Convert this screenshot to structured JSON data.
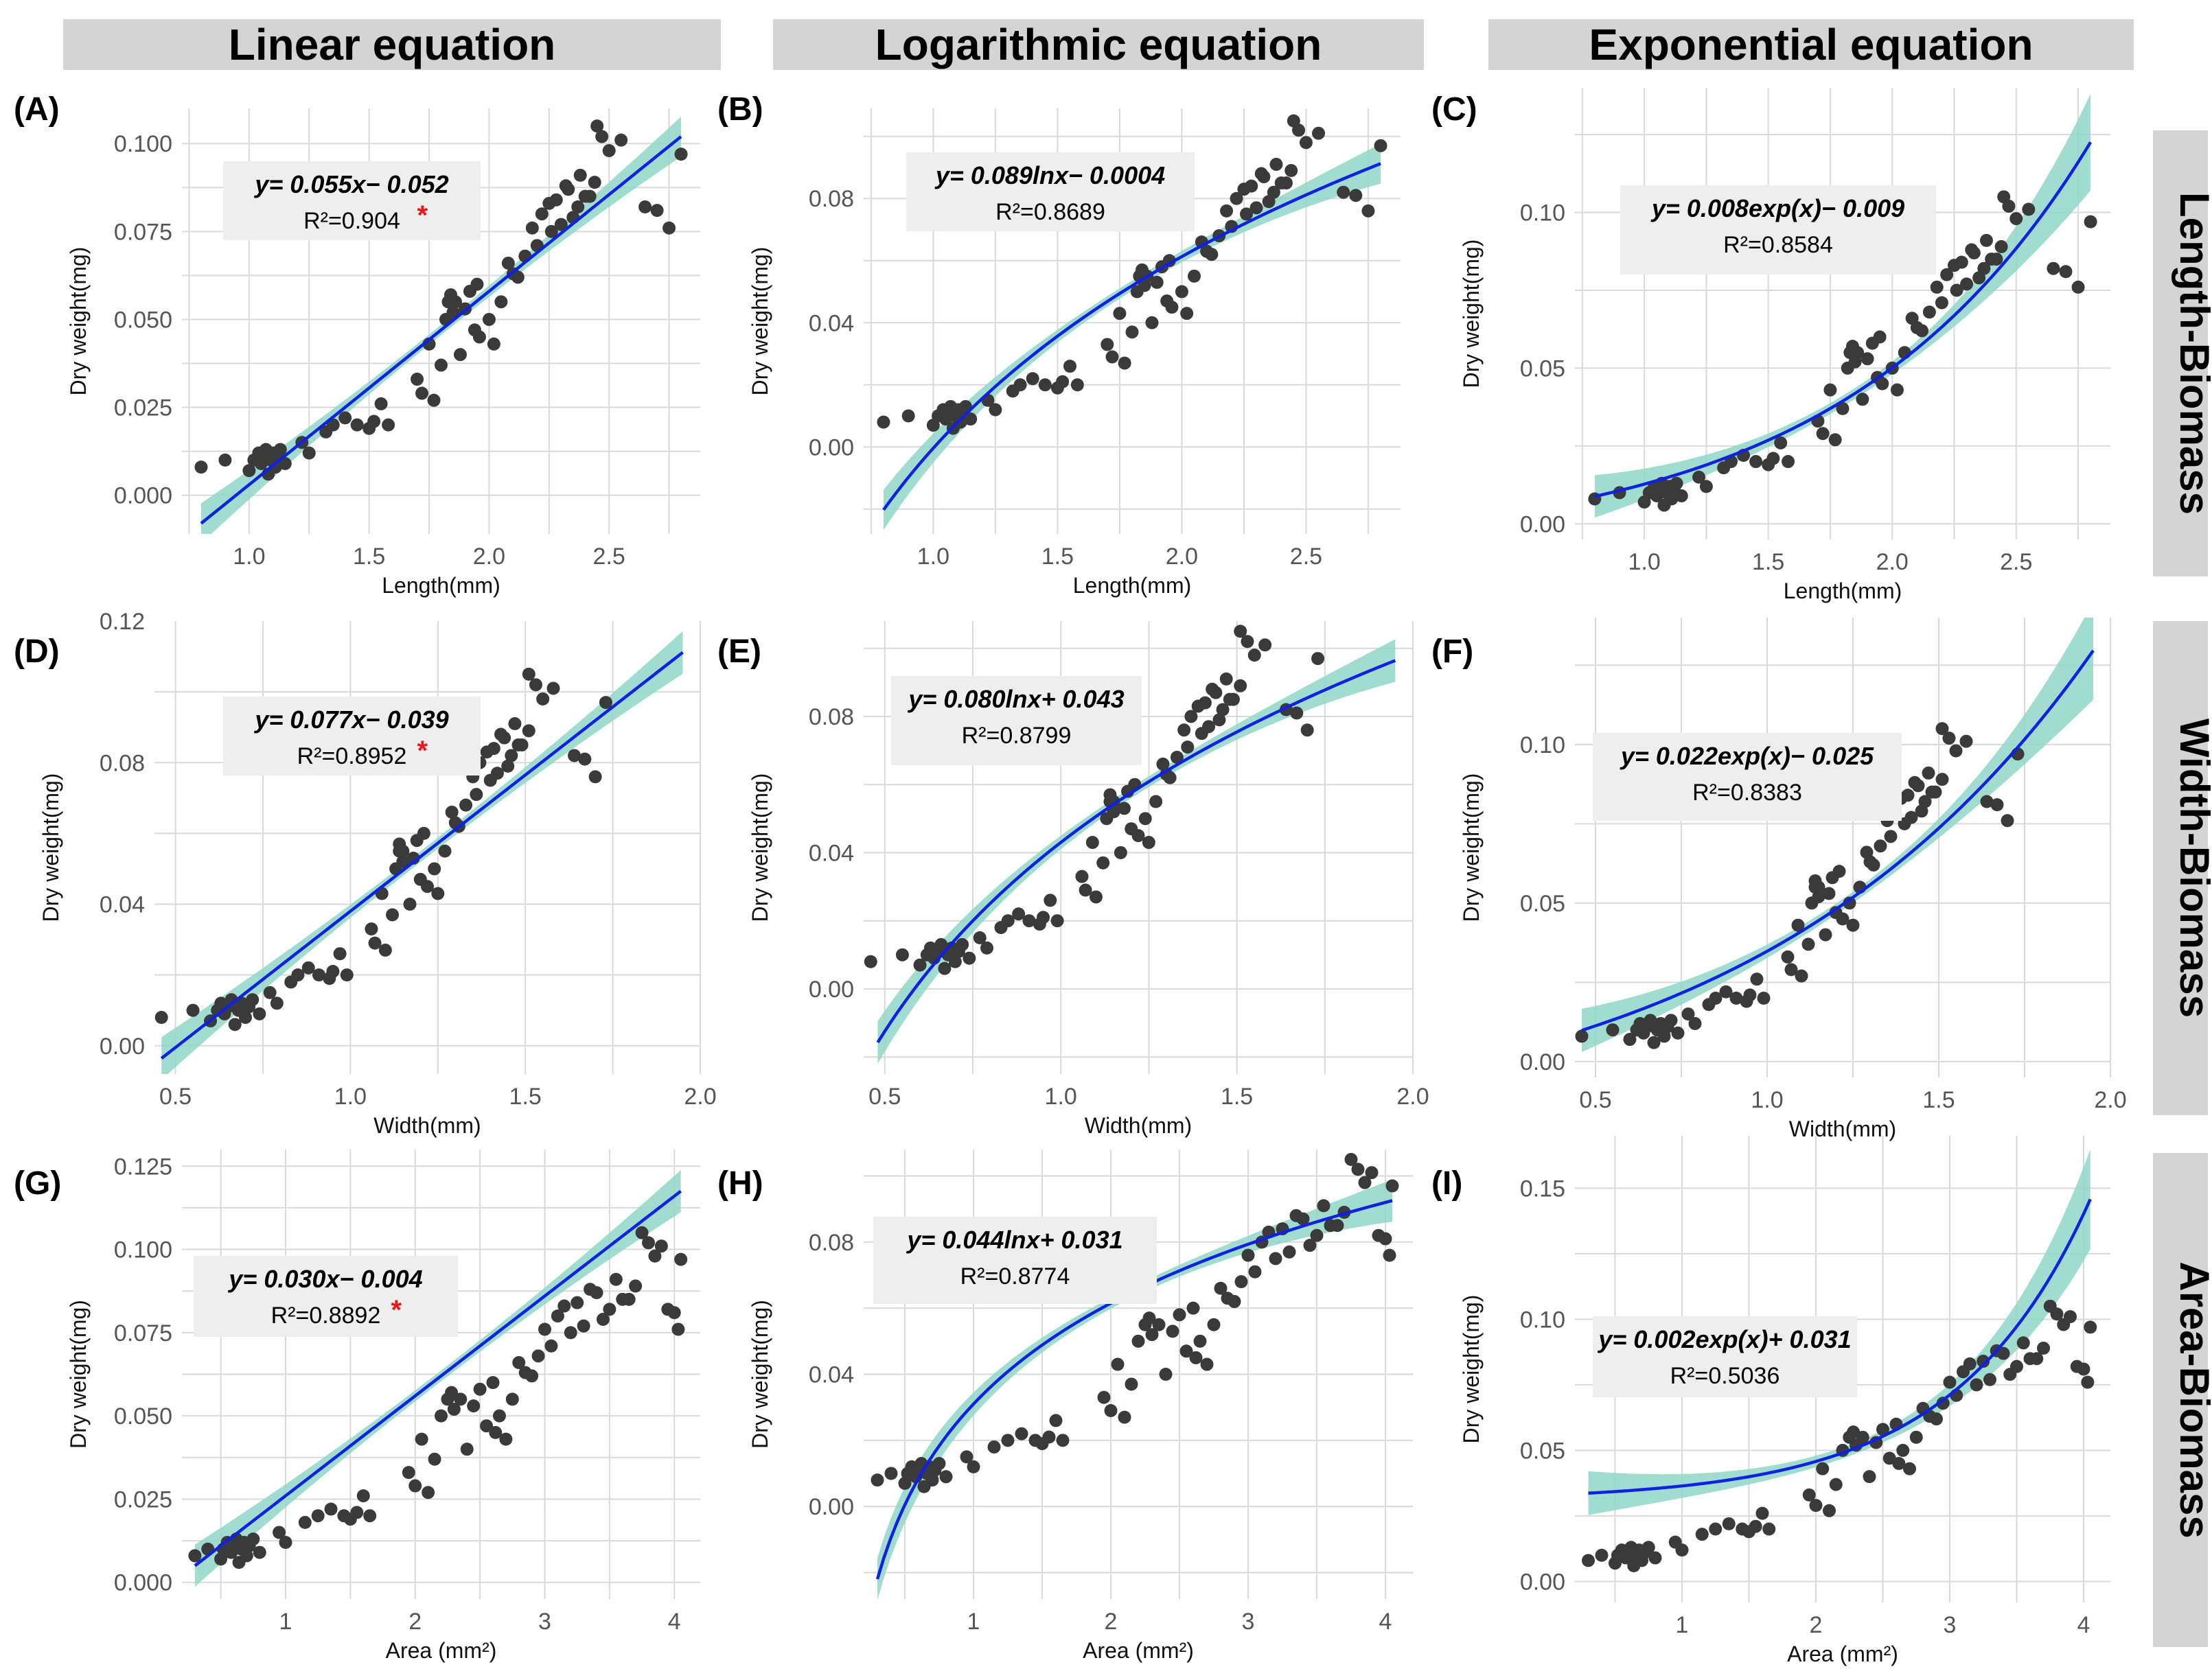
{
  "column_headers": [
    "Linear equation",
    "Logarithmic equation",
    "Exponential equation"
  ],
  "row_headers": [
    "Length-Biomass",
    "Width-Biomass",
    "Area-Biomass"
  ],
  "colors": {
    "point": "#3a3a3a",
    "fit_line": "#1022e0",
    "ci_band": "#8fd6c8",
    "header_bg": "#d4d4d4",
    "annotation_bg": "#eeeeee",
    "grid": "#d9d9d9",
    "star": "#e8181a"
  },
  "chart_data": [
    {
      "panel": "(A)",
      "type": "scatter",
      "model": "linear",
      "xlabel": "Length(mm)",
      "ylabel": "Dry weight(mg)",
      "xlim": [
        0.72,
        2.88
      ],
      "ylim": [
        -0.011,
        0.11
      ],
      "xticks": [
        1.0,
        1.5,
        2.0,
        2.5
      ],
      "yticks": [
        0.0,
        0.025,
        0.05,
        0.075,
        0.1
      ],
      "xtick_labels": [
        "1.0",
        "1.5",
        "2.0",
        "2.5"
      ],
      "ytick_labels": [
        "0.000",
        "0.025",
        "0.050",
        "0.075",
        "0.100"
      ],
      "equation": "y= 0.055x− 0.052",
      "r2": "R²=0.904",
      "significant": true,
      "fit": {
        "a": 0.055,
        "b": -0.052
      },
      "fit_range": [
        0.8,
        2.8
      ]
    },
    {
      "panel": "(B)",
      "type": "scatter",
      "model": "logarithmic",
      "xlabel": "Length(mm)",
      "ylabel": "Dry weight(mg)",
      "xlim": [
        0.72,
        2.88
      ],
      "ylim": [
        -0.028,
        0.109
      ],
      "xticks": [
        1.0,
        1.5,
        2.0,
        2.5
      ],
      "yticks": [
        0.0,
        0.04,
        0.08
      ],
      "xtick_labels": [
        "1.0",
        "1.5",
        "2.0",
        "2.5"
      ],
      "ytick_labels": [
        "0.00",
        "0.04",
        "0.08"
      ],
      "equation": "y= 0.089lnx− 0.0004",
      "r2": "R²=0.8689",
      "significant": false,
      "fit": {
        "a": 0.089,
        "b": -0.0004
      },
      "fit_range": [
        0.8,
        2.8
      ]
    },
    {
      "panel": "(C)",
      "type": "scatter",
      "model": "exponential",
      "xlabel": "Length(mm)",
      "ylabel": "Dry weight(mg)",
      "xlim": [
        0.72,
        2.88
      ],
      "ylim": [
        -0.005,
        0.14
      ],
      "xticks": [
        1.0,
        1.5,
        2.0,
        2.5
      ],
      "yticks": [
        0.0,
        0.05,
        0.1
      ],
      "xtick_labels": [
        "1.0",
        "1.5",
        "2.0",
        "2.5"
      ],
      "ytick_labels": [
        "0.00",
        "0.05",
        "0.10"
      ],
      "equation": "y= 0.008exp(x)− 0.009",
      "r2": "R²=0.8584",
      "significant": false,
      "fit": {
        "a": 0.008,
        "b": -0.009
      },
      "fit_range": [
        0.8,
        2.8
      ]
    },
    {
      "panel": "(D)",
      "type": "scatter",
      "model": "linear",
      "xlabel": "Width(mm)",
      "ylabel": "Dry weight(mg)",
      "xlim": [
        0.44,
        2.0
      ],
      "ylim": [
        -0.008,
        0.12
      ],
      "xticks": [
        0.5,
        1.0,
        1.5,
        2.0
      ],
      "yticks": [
        0.0,
        0.04,
        0.08,
        0.12
      ],
      "xtick_labels": [
        "0.5",
        "1.0",
        "1.5",
        "2.0"
      ],
      "ytick_labels": [
        "0.00",
        "0.04",
        "0.08",
        "0.12"
      ],
      "equation": "y= 0.077x− 0.039",
      "r2": "R²=0.8952",
      "significant": true,
      "fit": {
        "a": 0.077,
        "b": -0.039
      },
      "fit_range": [
        0.46,
        1.95
      ]
    },
    {
      "panel": "(E)",
      "type": "scatter",
      "model": "logarithmic",
      "xlabel": "Width(mm)",
      "ylabel": "Dry weight(mg)",
      "xlim": [
        0.44,
        2.0
      ],
      "ylim": [
        -0.025,
        0.108
      ],
      "xticks": [
        0.5,
        1.0,
        1.5,
        2.0
      ],
      "yticks": [
        0.0,
        0.04,
        0.08
      ],
      "xtick_labels": [
        "0.5",
        "1.0",
        "1.5",
        "2.0"
      ],
      "ytick_labels": [
        "0.00",
        "0.04",
        "0.08"
      ],
      "equation": "y= 0.080lnx+ 0.043",
      "r2": "R²=0.8799",
      "significant": false,
      "fit": {
        "a": 0.08,
        "b": 0.043
      },
      "fit_range": [
        0.48,
        1.95
      ]
    },
    {
      "panel": "(F)",
      "type": "scatter",
      "model": "exponential",
      "xlabel": "Width(mm)",
      "ylabel": "Dry weight(mg)",
      "xlim": [
        0.44,
        2.0
      ],
      "ylim": [
        -0.005,
        0.14
      ],
      "xticks": [
        0.5,
        1.0,
        1.5,
        2.0
      ],
      "yticks": [
        0.0,
        0.05,
        0.1
      ],
      "xtick_labels": [
        "0.5",
        "1.0",
        "1.5",
        "2.0"
      ],
      "ytick_labels": [
        "0.00",
        "0.05",
        "0.10"
      ],
      "equation": "y= 0.022exp(x)− 0.025",
      "r2": "R²=0.8383",
      "significant": false,
      "fit": {
        "a": 0.022,
        "b": -0.025
      },
      "fit_range": [
        0.46,
        1.95
      ]
    },
    {
      "panel": "(G)",
      "type": "scatter",
      "model": "linear",
      "xlabel": "Area (mm²)",
      "ylabel": "Dry weight(mg)",
      "xlim": [
        0.2,
        4.2
      ],
      "ylim": [
        -0.005,
        0.13
      ],
      "xticks": [
        1,
        2,
        3,
        4
      ],
      "yticks": [
        0.0,
        0.025,
        0.05,
        0.075,
        0.1,
        0.125
      ],
      "xtick_labels": [
        "1",
        "2",
        "3",
        "4"
      ],
      "ytick_labels": [
        "0.000",
        "0.025",
        "0.050",
        "0.075",
        "0.100",
        "0.125"
      ],
      "equation": "y= 0.030x− 0.004",
      "r2": "R²=0.8892",
      "significant": true,
      "fit": {
        "a": 0.03,
        "b": -0.004
      },
      "fit_range": [
        0.3,
        4.05
      ]
    },
    {
      "panel": "(H)",
      "type": "scatter",
      "model": "logarithmic",
      "xlabel": "Area (mm²)",
      "ylabel": "Dry weight(mg)",
      "xlim": [
        0.2,
        4.2
      ],
      "ylim": [
        -0.028,
        0.108
      ],
      "xticks": [
        1,
        2,
        3,
        4
      ],
      "yticks": [
        0.0,
        0.04,
        0.08
      ],
      "xtick_labels": [
        "1",
        "2",
        "3",
        "4"
      ],
      "ytick_labels": [
        "0.00",
        "0.04",
        "0.08"
      ],
      "equation": "y= 0.044lnx+ 0.031",
      "r2": "R²=0.8774",
      "significant": false,
      "fit": {
        "a": 0.044,
        "b": 0.031
      },
      "fit_range": [
        0.3,
        4.05
      ]
    },
    {
      "panel": "(I)",
      "type": "scatter",
      "model": "exponential",
      "xlabel": "Area (mm²)",
      "ylabel": "Dry weight(mg)",
      "xlim": [
        0.2,
        4.2
      ],
      "ylim": [
        -0.008,
        0.17
      ],
      "xticks": [
        1,
        2,
        3,
        4
      ],
      "yticks": [
        0.0,
        0.05,
        0.1,
        0.15
      ],
      "xtick_labels": [
        "1",
        "2",
        "3",
        "4"
      ],
      "ytick_labels": [
        "0.00",
        "0.05",
        "0.10",
        "0.15"
      ],
      "equation": "y= 0.002exp(x)+ 0.031",
      "r2": "R²=0.5036",
      "significant": false,
      "fit": {
        "a": 0.002,
        "b": 0.031
      },
      "fit_range": [
        0.3,
        4.05
      ]
    }
  ],
  "observations": {
    "length_mm": [
      0.8,
      0.9,
      1.0,
      1.02,
      1.04,
      1.05,
      1.06,
      1.07,
      1.08,
      1.09,
      1.1,
      1.11,
      1.12,
      1.13,
      1.15,
      1.22,
      1.25,
      1.32,
      1.35,
      1.4,
      1.45,
      1.5,
      1.52,
      1.55,
      1.58,
      1.7,
      1.72,
      1.75,
      1.77,
      1.8,
      1.82,
      1.83,
      1.84,
      1.85,
      1.86,
      1.88,
      1.9,
      1.92,
      1.94,
      1.95,
      1.96,
      2.0,
      2.02,
      2.05,
      2.08,
      2.1,
      2.12,
      2.15,
      2.18,
      2.2,
      2.22,
      2.25,
      2.26,
      2.28,
      2.3,
      2.32,
      2.33,
      2.35,
      2.37,
      2.38,
      2.4,
      2.42,
      2.44,
      2.45,
      2.47,
      2.5,
      2.55,
      2.65,
      2.7,
      2.75,
      2.8
    ],
    "width_mm": [
      0.46,
      0.55,
      0.6,
      0.62,
      0.63,
      0.64,
      0.65,
      0.66,
      0.67,
      0.68,
      0.69,
      0.7,
      0.71,
      0.72,
      0.74,
      0.77,
      0.79,
      0.83,
      0.85,
      0.88,
      0.91,
      0.94,
      0.95,
      0.97,
      0.99,
      1.06,
      1.07,
      1.09,
      1.1,
      1.12,
      1.13,
      1.14,
      1.14,
      1.15,
      1.15,
      1.17,
      1.18,
      1.19,
      1.2,
      1.21,
      1.22,
      1.24,
      1.25,
      1.27,
      1.29,
      1.3,
      1.31,
      1.33,
      1.35,
      1.36,
      1.37,
      1.39,
      1.4,
      1.41,
      1.42,
      1.43,
      1.44,
      1.45,
      1.46,
      1.47,
      1.48,
      1.49,
      1.51,
      1.51,
      1.53,
      1.55,
      1.58,
      1.64,
      1.67,
      1.7,
      1.73
    ],
    "area_mm2": [
      0.3,
      0.4,
      0.5,
      0.52,
      0.55,
      0.58,
      0.6,
      0.62,
      0.64,
      0.66,
      0.68,
      0.7,
      0.72,
      0.75,
      0.8,
      0.95,
      1.0,
      1.15,
      1.25,
      1.35,
      1.45,
      1.5,
      1.55,
      1.6,
      1.65,
      1.95,
      2.0,
      2.05,
      2.1,
      2.15,
      2.2,
      2.25,
      2.28,
      2.3,
      2.35,
      2.4,
      2.45,
      2.5,
      2.55,
      2.6,
      2.62,
      2.65,
      2.7,
      2.75,
      2.8,
      2.85,
      2.9,
      2.95,
      3.0,
      3.05,
      3.1,
      3.15,
      3.2,
      3.25,
      3.3,
      3.35,
      3.4,
      3.45,
      3.5,
      3.55,
      3.6,
      3.65,
      3.7,
      3.75,
      3.8,
      3.85,
      3.9,
      3.95,
      4.0,
      4.03,
      4.05
    ],
    "dry_weight_mg": [
      0.008,
      0.01,
      0.007,
      0.01,
      0.012,
      0.009,
      0.011,
      0.013,
      0.006,
      0.01,
      0.012,
      0.008,
      0.011,
      0.013,
      0.009,
      0.015,
      0.012,
      0.018,
      0.02,
      0.022,
      0.02,
      0.019,
      0.021,
      0.026,
      0.02,
      0.033,
      0.029,
      0.043,
      0.027,
      0.037,
      0.05,
      0.055,
      0.057,
      0.052,
      0.055,
      0.04,
      0.053,
      0.058,
      0.047,
      0.06,
      0.045,
      0.05,
      0.043,
      0.055,
      0.066,
      0.063,
      0.062,
      0.068,
      0.076,
      0.071,
      0.08,
      0.083,
      0.075,
      0.084,
      0.077,
      0.088,
      0.087,
      0.079,
      0.082,
      0.091,
      0.085,
      0.085,
      0.089,
      0.105,
      0.102,
      0.098,
      0.101,
      0.082,
      0.081,
      0.076,
      0.097
    ]
  }
}
